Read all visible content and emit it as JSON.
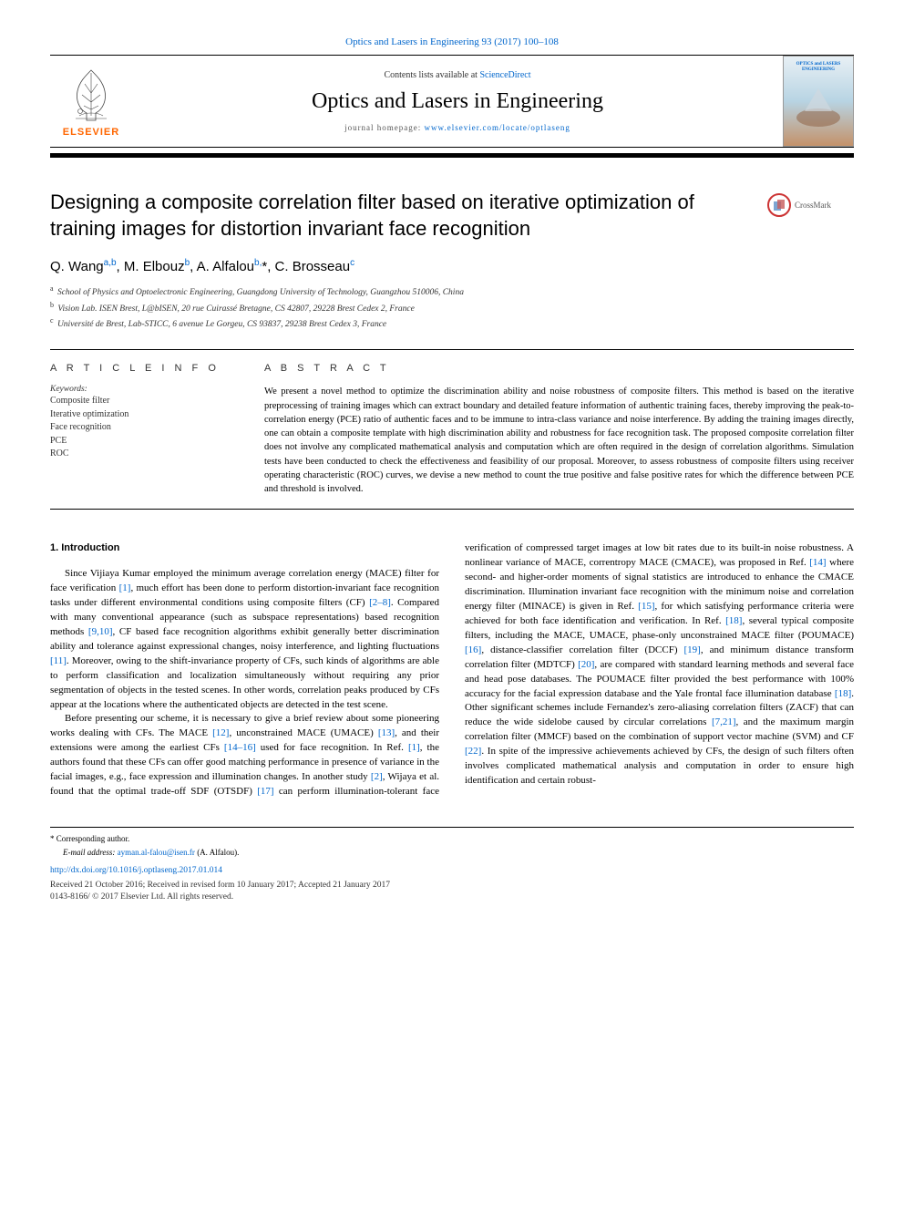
{
  "journal_ref": "Optics and Lasers in Engineering 93 (2017) 100–108",
  "header": {
    "contents_text": "Contents lists available at ",
    "contents_link": "ScienceDirect",
    "journal_title": "Optics and Lasers in Engineering",
    "homepage_label": "journal homepage: ",
    "homepage_url": "www.elsevier.com/locate/optlaseng",
    "publisher": "ELSEVIER",
    "cover_title": "OPTICS and LASERS ENGINEERING"
  },
  "crossmark": "CrossMark",
  "title": "Designing a composite correlation filter based on iterative optimization of training images for distortion invariant face recognition",
  "authors_html": "Q. Wang<sup>a,b</sup>, M. Elbouz<sup>b</sup>, A. Alfalou<sup>b,</sup>*, C. Brosseau<sup>c</sup>",
  "affiliations": [
    {
      "sup": "a",
      "text": "School of Physics and Optoelectronic Engineering, Guangdong University of Technology, Guangzhou 510006, China"
    },
    {
      "sup": "b",
      "text": "Vision Lab. ISEN Brest, L@bISEN, 20 rue Cuirassé Bretagne, CS 42807, 29228 Brest Cedex 2, France"
    },
    {
      "sup": "c",
      "text": "Université de Brest, Lab-STICC, 6 avenue Le Gorgeu, CS 93837, 29238 Brest Cedex 3, France"
    }
  ],
  "article_info_label": "A R T I C L E  I N F O",
  "keywords_label": "Keywords:",
  "keywords": [
    "Composite filter",
    "Iterative optimization",
    "Face recognition",
    "PCE",
    "ROC"
  ],
  "abstract_label": "A B S T R A C T",
  "abstract": "We present a novel method to optimize the discrimination ability and noise robustness of composite filters. This method is based on the iterative preprocessing of training images which can extract boundary and detailed feature information of authentic training faces, thereby improving the peak-to-correlation energy (PCE) ratio of authentic faces and to be immune to intra-class variance and noise interference. By adding the training images directly, one can obtain a composite template with high discrimination ability and robustness for face recognition task. The proposed composite correlation filter does not involve any complicated mathematical analysis and computation which are often required in the design of correlation algorithms. Simulation tests have been conducted to check the effectiveness and feasibility of our proposal. Moreover, to assess robustness of composite filters using receiver operating characteristic (ROC) curves, we devise a new method to count the true positive and false positive rates for which the difference between PCE and threshold is involved.",
  "section_1_heading": "1. Introduction",
  "body": {
    "p1_a": "Since Vijiaya Kumar employed the minimum average correlation energy (MACE) filter for face verification ",
    "ref1": "[1]",
    "p1_b": ", much effort has been done to perform distortion-invariant face recognition tasks under different environmental conditions using composite filters (CF) ",
    "ref2_8": "[2–8]",
    "p1_c": ". Compared with many conventional appearance (such as subspace representations) based recognition methods ",
    "ref9_10": "[9,10]",
    "p1_d": ", CF based face recognition algorithms exhibit generally better discrimination ability and tolerance against expressional changes, noisy interference, and lighting fluctuations ",
    "ref11": "[11]",
    "p1_e": ". Moreover, owing to the shift-invariance property of CFs, such kinds of algorithms are able to perform classification and localization simultaneously without requiring any prior segmentation of objects in the tested scenes. In other words, correlation peaks produced by CFs appear at the locations where the authenticated objects are detected in the test scene.",
    "p2_a": "Before presenting our scheme, it is necessary to give a brief review about some pioneering works dealing with CFs. The MACE ",
    "ref12": "[12]",
    "p2_b": ", unconstrained MACE (UMACE) ",
    "ref13": "[13]",
    "p2_c": ", and their extensions were among the earliest CFs ",
    "ref14_16": "[14–16]",
    "p2_d": " used for face recognition. In Ref. ",
    "ref1b": "[1]",
    "p2_e": ", the authors found that these CFs can offer good matching performance in presence of variance in the facial images, e.g., face expression and illumination changes. In another study ",
    "ref2": "[2]",
    "p2_f": ", Wijaya et al. found that the ",
    "p3_a": "optimal trade-off SDF (OTSDF) ",
    "ref17": "[17]",
    "p3_b": " can perform illumination-tolerant face verification of compressed target images at low bit rates due to its built-in noise robustness. A nonlinear variance of MACE, correntropy MACE (CMACE), was proposed in Ref. ",
    "ref14": "[14]",
    "p3_c": " where second- and higher-order moments of signal statistics are introduced to enhance the CMACE discrimination. Illumination invariant face recognition with the minimum noise and correlation energy filter (MINACE) is given in Ref. ",
    "ref15": "[15]",
    "p3_d": ", for which satisfying performance criteria were achieved for both face identification and verification. In Ref. ",
    "ref18": "[18]",
    "p3_e": ", several typical composite filters, including the MACE, UMACE, phase-only unconstrained MACE filter (POUMACE) ",
    "ref16": "[16]",
    "p3_f": ", distance-classifier correlation filter (DCCF) ",
    "ref19": "[19]",
    "p3_g": ", and minimum distance transform correlation filter (MDTCF) ",
    "ref20": "[20]",
    "p3_h": ", are compared with standard learning methods and several face and head pose databases. The POUMACE filter provided the best performance with 100% accuracy for the facial expression database and the Yale frontal face illumination database ",
    "ref18b": "[18]",
    "p3_i": ". Other significant schemes include Fernandez's zero-aliasing correlation filters (ZACF) that can reduce the wide sidelobe caused by circular correlations ",
    "ref7_21": "[7,21]",
    "p3_j": ", and the maximum margin correlation filter (MMCF) based on the combination of support vector machine (SVM) and CF ",
    "ref22": "[22]",
    "p3_k": ". In spite of the impressive achievements achieved by CFs, the design of such filters often involves complicated mathematical analysis and computation in order to ensure high identification and certain robust-"
  },
  "footer": {
    "corresp": "* Corresponding author.",
    "email_label": "E-mail address: ",
    "email": "ayman.al-falou@isen.fr",
    "email_name": " (A. Alfalou).",
    "doi": "http://dx.doi.org/10.1016/j.optlaseng.2017.01.014",
    "received": "Received 21 October 2016; Received in revised form 10 January 2017; Accepted 21 January 2017",
    "issn": "0143-8166/ © 2017 Elsevier Ltd. All rights reserved."
  },
  "colors": {
    "link": "#0066cc",
    "elsevier_orange": "#ff6600",
    "text": "#000000",
    "muted": "#333333"
  }
}
